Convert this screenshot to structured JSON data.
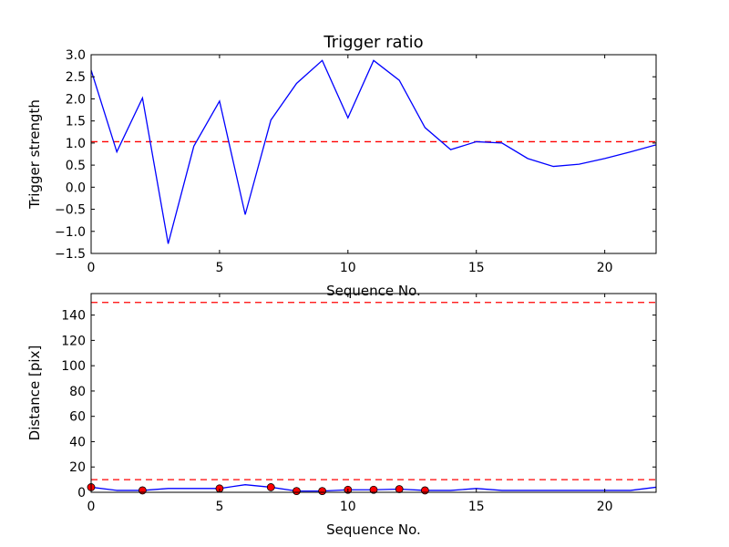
{
  "chart_data": [
    {
      "type": "line",
      "title": "Trigger ratio",
      "xlabel": "Sequence No.",
      "ylabel": "Trigger strength",
      "xlim": [
        0,
        22
      ],
      "ylim": [
        -1.5,
        3.0
      ],
      "xticks": [
        0,
        5,
        10,
        15,
        20
      ],
      "yticks": [
        -1.5,
        -1.0,
        -0.5,
        0.0,
        0.5,
        1.0,
        1.5,
        2.0,
        2.5,
        3.0
      ],
      "ytick_labels": [
        "−1.5",
        "−1.0",
        "−0.5",
        "0.0",
        "0.5",
        "1.0",
        "1.5",
        "2.0",
        "2.5",
        "3.0"
      ],
      "grid": false,
      "series": [
        {
          "color": "#0000ff",
          "style": "solid",
          "x": [
            0,
            1,
            2,
            3,
            4,
            5,
            6,
            7,
            8,
            9,
            10,
            11,
            12,
            13,
            14,
            15,
            16,
            17,
            18,
            19,
            20,
            21,
            22
          ],
          "y": [
            2.65,
            0.8,
            2.02,
            -1.28,
            0.93,
            1.95,
            -0.62,
            1.52,
            2.35,
            2.87,
            1.57,
            2.87,
            2.42,
            1.35,
            0.85,
            1.03,
            1.0,
            0.65,
            0.47,
            0.52,
            0.65,
            0.8,
            0.96
          ]
        }
      ],
      "reference_lines": [
        {
          "y": 1.03,
          "color": "#ff0000",
          "style": "dashed"
        }
      ]
    },
    {
      "type": "line",
      "title": "",
      "xlabel": "Sequence No.",
      "ylabel": "Distance [pix]",
      "xlim": [
        0,
        22
      ],
      "ylim": [
        0,
        157
      ],
      "xticks": [
        0,
        5,
        10,
        15,
        20
      ],
      "yticks": [
        0,
        20,
        40,
        60,
        80,
        100,
        120,
        140
      ],
      "ytick_labels": [
        "0",
        "20",
        "40",
        "60",
        "80",
        "100",
        "120",
        "140"
      ],
      "grid": false,
      "series": [
        {
          "color": "#0000ff",
          "style": "solid",
          "x": [
            0,
            1,
            2,
            3,
            4,
            5,
            6,
            7,
            8,
            9,
            10,
            11,
            12,
            13,
            14,
            15,
            16,
            17,
            18,
            19,
            20,
            21,
            22
          ],
          "y": [
            4,
            1.5,
            1.5,
            3,
            3,
            3,
            6,
            4,
            1,
            1,
            2,
            2,
            2.5,
            1.5,
            1.5,
            3,
            1.5,
            1.5,
            1.5,
            1.5,
            1.5,
            1.5,
            4
          ]
        }
      ],
      "markers": {
        "color": "#ff0000",
        "x": [
          0,
          2,
          5,
          7,
          8,
          9,
          10,
          11,
          12,
          13
        ],
        "y": [
          4,
          1.5,
          3,
          4,
          1,
          1,
          2,
          2,
          2.5,
          1.5
        ]
      },
      "reference_lines": [
        {
          "y": 150,
          "color": "#ff0000",
          "style": "dashed"
        },
        {
          "y": 10,
          "color": "#ff0000",
          "style": "dashed"
        }
      ]
    }
  ]
}
